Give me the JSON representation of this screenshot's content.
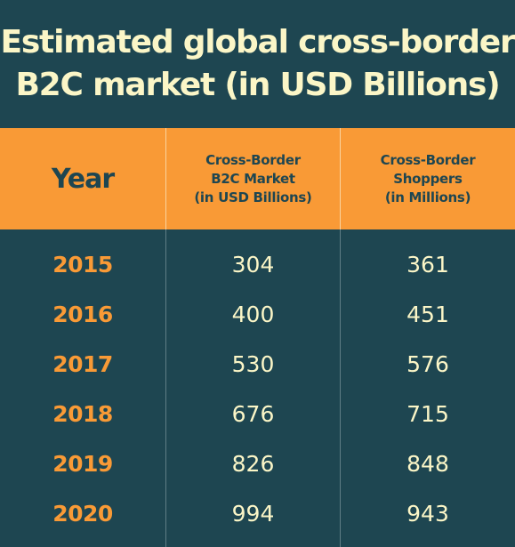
{
  "title_lines": [
    "Estimated global cross-border",
    "B2C market (in USD Billions)"
  ],
  "colors": {
    "background": "#1e4651",
    "header_band": "#f99a36",
    "title_text": "#fbf6c7",
    "year_text": "#f99a36",
    "value_text": "#fbf6c7",
    "header_text": "#1e4651"
  },
  "headers": {
    "year": "Year",
    "col1": [
      "Cross-Border",
      "B2C Market",
      "(in USD Billions)"
    ],
    "col2": [
      "Cross-Border",
      "Shoppers",
      "(in Millions)"
    ]
  },
  "chart_data": {
    "type": "table",
    "title": "Estimated global cross-border B2C market (in USD Billions)",
    "columns": [
      "Year",
      "Cross-Border B2C Market (in USD Billions)",
      "Cross-Border Shoppers (in Millions)"
    ],
    "rows": [
      {
        "year": "2015",
        "market": "304",
        "shoppers": "361"
      },
      {
        "year": "2016",
        "market": "400",
        "shoppers": "451"
      },
      {
        "year": "2017",
        "market": "530",
        "shoppers": "576"
      },
      {
        "year": "2018",
        "market": "676",
        "shoppers": "715"
      },
      {
        "year": "2019",
        "market": "826",
        "shoppers": "848"
      },
      {
        "year": "2020",
        "market": "994",
        "shoppers": "943"
      }
    ]
  }
}
